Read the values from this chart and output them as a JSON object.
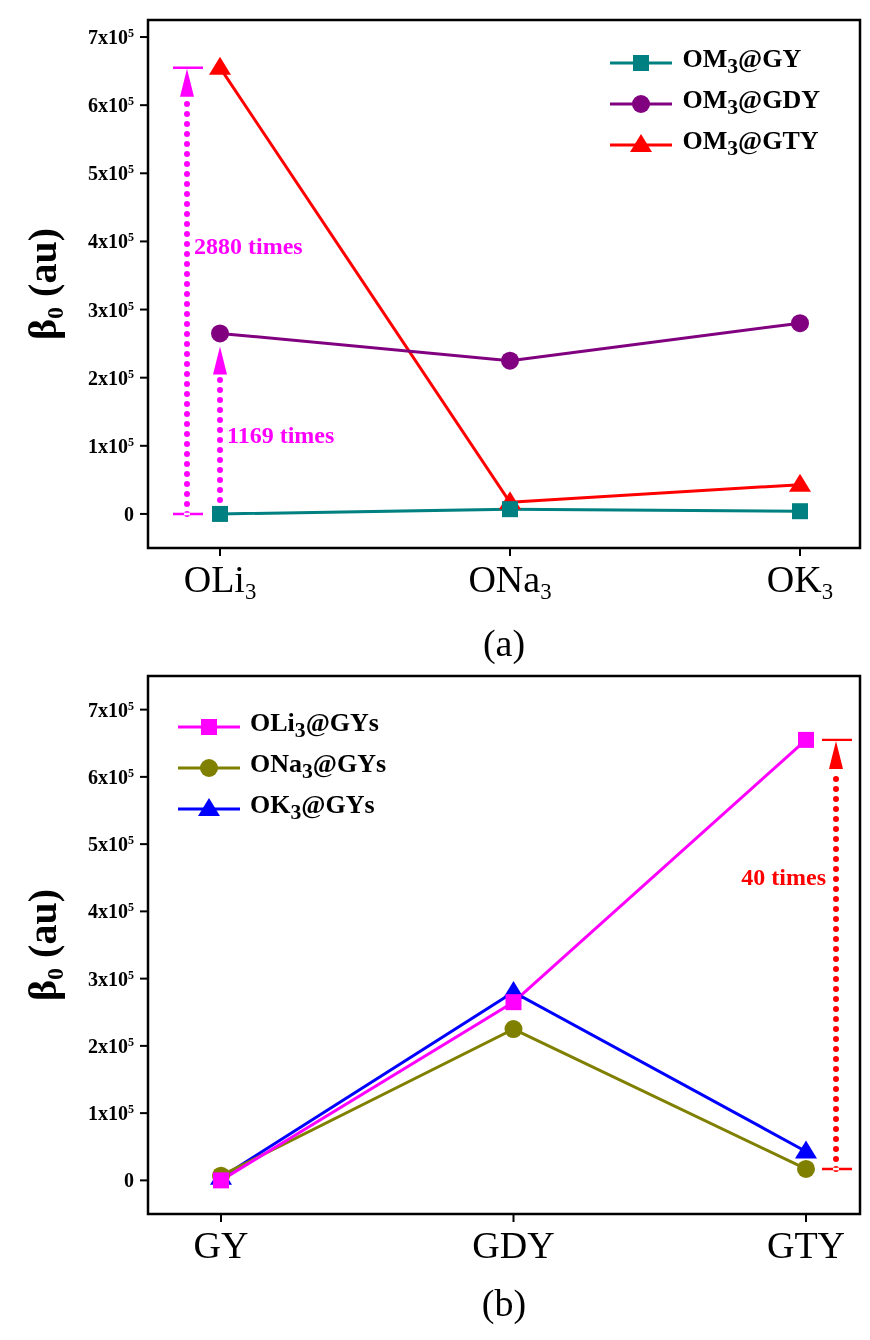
{
  "chart_data": [
    {
      "type": "line",
      "xlabel": "(a)",
      "ylabel": "β$_{0}$ (au)",
      "categories": [
        "OLi$_{3}$",
        "ONa$_{3}$",
        "OK$_{3}$"
      ],
      "ylim": [
        -50000,
        725000
      ],
      "yticks": [
        0,
        {
          "value": 100000,
          "label": "1x10$^{5}$"
        },
        {
          "value": 200000,
          "label": "2x10$^{5}$"
        },
        {
          "value": 300000,
          "label": "3x10$^{5}$"
        },
        {
          "value": 400000,
          "label": "4x10$^{5}$"
        },
        {
          "value": 500000,
          "label": "5x10$^{5}$"
        },
        {
          "value": 600000,
          "label": "6x10$^{5}$"
        },
        {
          "value": 700000,
          "label": "7x10$^{5}$"
        }
      ],
      "legend": "top right",
      "series": [
        {
          "name": "OM$_{3}$@GY",
          "color": "#008080",
          "marker": "square",
          "values": [
            0,
            7000,
            4000
          ]
        },
        {
          "name": "OM$_{3}$@GDY",
          "color": "#800080",
          "marker": "circle",
          "values": [
            265000,
            225000,
            280000
          ]
        },
        {
          "name": "OM$_{3}$@GTY",
          "color": "#ff0000",
          "marker": "triangle",
          "values": [
            655000,
            17000,
            43000
          ]
        }
      ],
      "annotations": [
        "2880 times",
        "1169 times"
      ]
    },
    {
      "type": "line",
      "xlabel": "(b)",
      "ylabel": "β$_{0}$ (au)",
      "categories": [
        "GY",
        "GDY",
        "GTY"
      ],
      "ylim": [
        -50000,
        750000
      ],
      "yticks": [
        0,
        {
          "value": 100000,
          "label": "1x10$^{5}$"
        },
        {
          "value": 200000,
          "label": "2x10$^{5}$"
        },
        {
          "value": 300000,
          "label": "3x10$^{5}$"
        },
        {
          "value": 400000,
          "label": "4x10$^{5}$"
        },
        {
          "value": 500000,
          "label": "5x10$^{5}$"
        },
        {
          "value": 600000,
          "label": "6x10$^{5}$"
        },
        {
          "value": 700000,
          "label": "7x10$^{5}$"
        }
      ],
      "legend": "top left",
      "series": [
        {
          "name": "OLi$_{3}$@GYs",
          "color": "#ff00ff",
          "marker": "square",
          "values": [
            0,
            265000,
            655000
          ]
        },
        {
          "name": "ONa$_{3}$@GYs",
          "color": "#808000",
          "marker": "circle",
          "values": [
            7000,
            225000,
            17000
          ]
        },
        {
          "name": "OK$_{3}$@GYs",
          "color": "#0000ff",
          "marker": "triangle",
          "values": [
            4000,
            280000,
            43000
          ]
        }
      ],
      "annotations": [
        "40 times"
      ]
    }
  ]
}
